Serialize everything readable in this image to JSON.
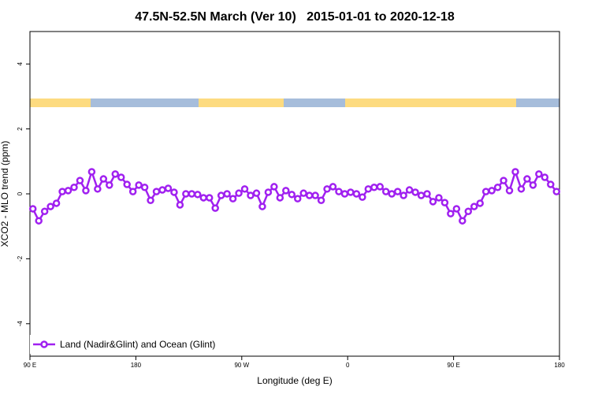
{
  "chart_data": {
    "type": "line",
    "title": "47.5N-52.5N March (Ver 10)   2015-01-01 to 2020-12-18",
    "xlabel": "Longitude (deg E)",
    "ylabel": "XCO2 - MLO trend (ppm)",
    "xlim": [
      90,
      540
    ],
    "ylim": [
      -5,
      5
    ],
    "xticks": [
      {
        "value": 90,
        "label": "90 E"
      },
      180,
      {
        "value": 270,
        "label": "90 W"
      },
      {
        "value": 360,
        "label": "0"
      },
      {
        "value": 450,
        "label": "90 E"
      },
      {
        "value": 540,
        "label": "180"
      }
    ],
    "yticks": [
      -4,
      -2,
      0,
      2,
      4
    ],
    "legend": "bottom-left",
    "x": [
      92.5,
      97.5,
      102.5,
      107.5,
      112.5,
      117.5,
      122.5,
      127.5,
      132.5,
      137.5,
      142.5,
      147.5,
      152.5,
      157.5,
      162.5,
      167.5,
      172.5,
      177.5,
      182.5,
      187.5,
      192.5,
      197.5,
      202.5,
      207.5,
      212.5,
      217.5,
      222.5,
      227.5,
      232.5,
      237.5,
      242.5,
      247.5,
      252.5,
      257.5,
      262.5,
      267.5,
      272.5,
      277.5,
      282.5,
      287.5,
      292.5,
      297.5,
      302.5,
      307.5,
      312.5,
      317.5,
      322.5,
      327.5,
      332.5,
      337.5,
      342.5,
      347.5,
      352.5,
      357.5,
      362.5,
      367.5,
      372.5,
      377.5,
      382.5,
      387.5,
      392.5,
      397.5,
      402.5,
      407.5,
      412.5,
      417.5,
      422.5,
      427.5,
      432.5,
      437.5,
      442.5,
      447.5,
      452.5,
      457.5,
      462.5,
      467.5,
      472.5,
      477.5,
      482.5,
      487.5,
      492.5,
      497.5,
      502.5,
      507.5,
      512.5,
      517.5,
      522.5,
      527.5,
      532.5,
      537.5
    ],
    "series": [
      {
        "name": "Land (Nadir&Glint) and Ocean (Glint)",
        "color": "#a020f0",
        "values": [
          -0.46,
          -0.83,
          -0.54,
          -0.39,
          -0.29,
          0.07,
          0.1,
          0.2,
          0.41,
          0.1,
          0.68,
          0.15,
          0.46,
          0.27,
          0.61,
          0.51,
          0.29,
          0.07,
          0.27,
          0.2,
          -0.2,
          0.07,
          0.12,
          0.17,
          0.05,
          -0.34,
          0,
          0,
          -0.02,
          -0.12,
          -0.12,
          -0.44,
          -0.05,
          0,
          -0.15,
          0.02,
          0.15,
          -0.05,
          0.02,
          -0.39,
          0.05,
          0.22,
          -0.12,
          0.1,
          -0.02,
          -0.15,
          0.02,
          -0.05,
          -0.05,
          -0.2,
          0.15,
          0.22,
          0.07,
          0,
          0.05,
          0,
          -0.1,
          0.15,
          0.2,
          0.22,
          0.07,
          0,
          0.07,
          -0.05,
          0.12,
          0.05,
          -0.05,
          0,
          -0.24,
          -0.12,
          -0.27,
          -0.61,
          -0.46,
          -0.83,
          -0.54,
          -0.39,
          -0.29,
          0.07,
          0.1,
          0.2,
          0.41,
          0.1,
          0.68,
          0.15,
          0.46,
          0.27,
          0.61,
          0.51,
          0.29,
          0.07
        ]
      }
    ]
  }
}
